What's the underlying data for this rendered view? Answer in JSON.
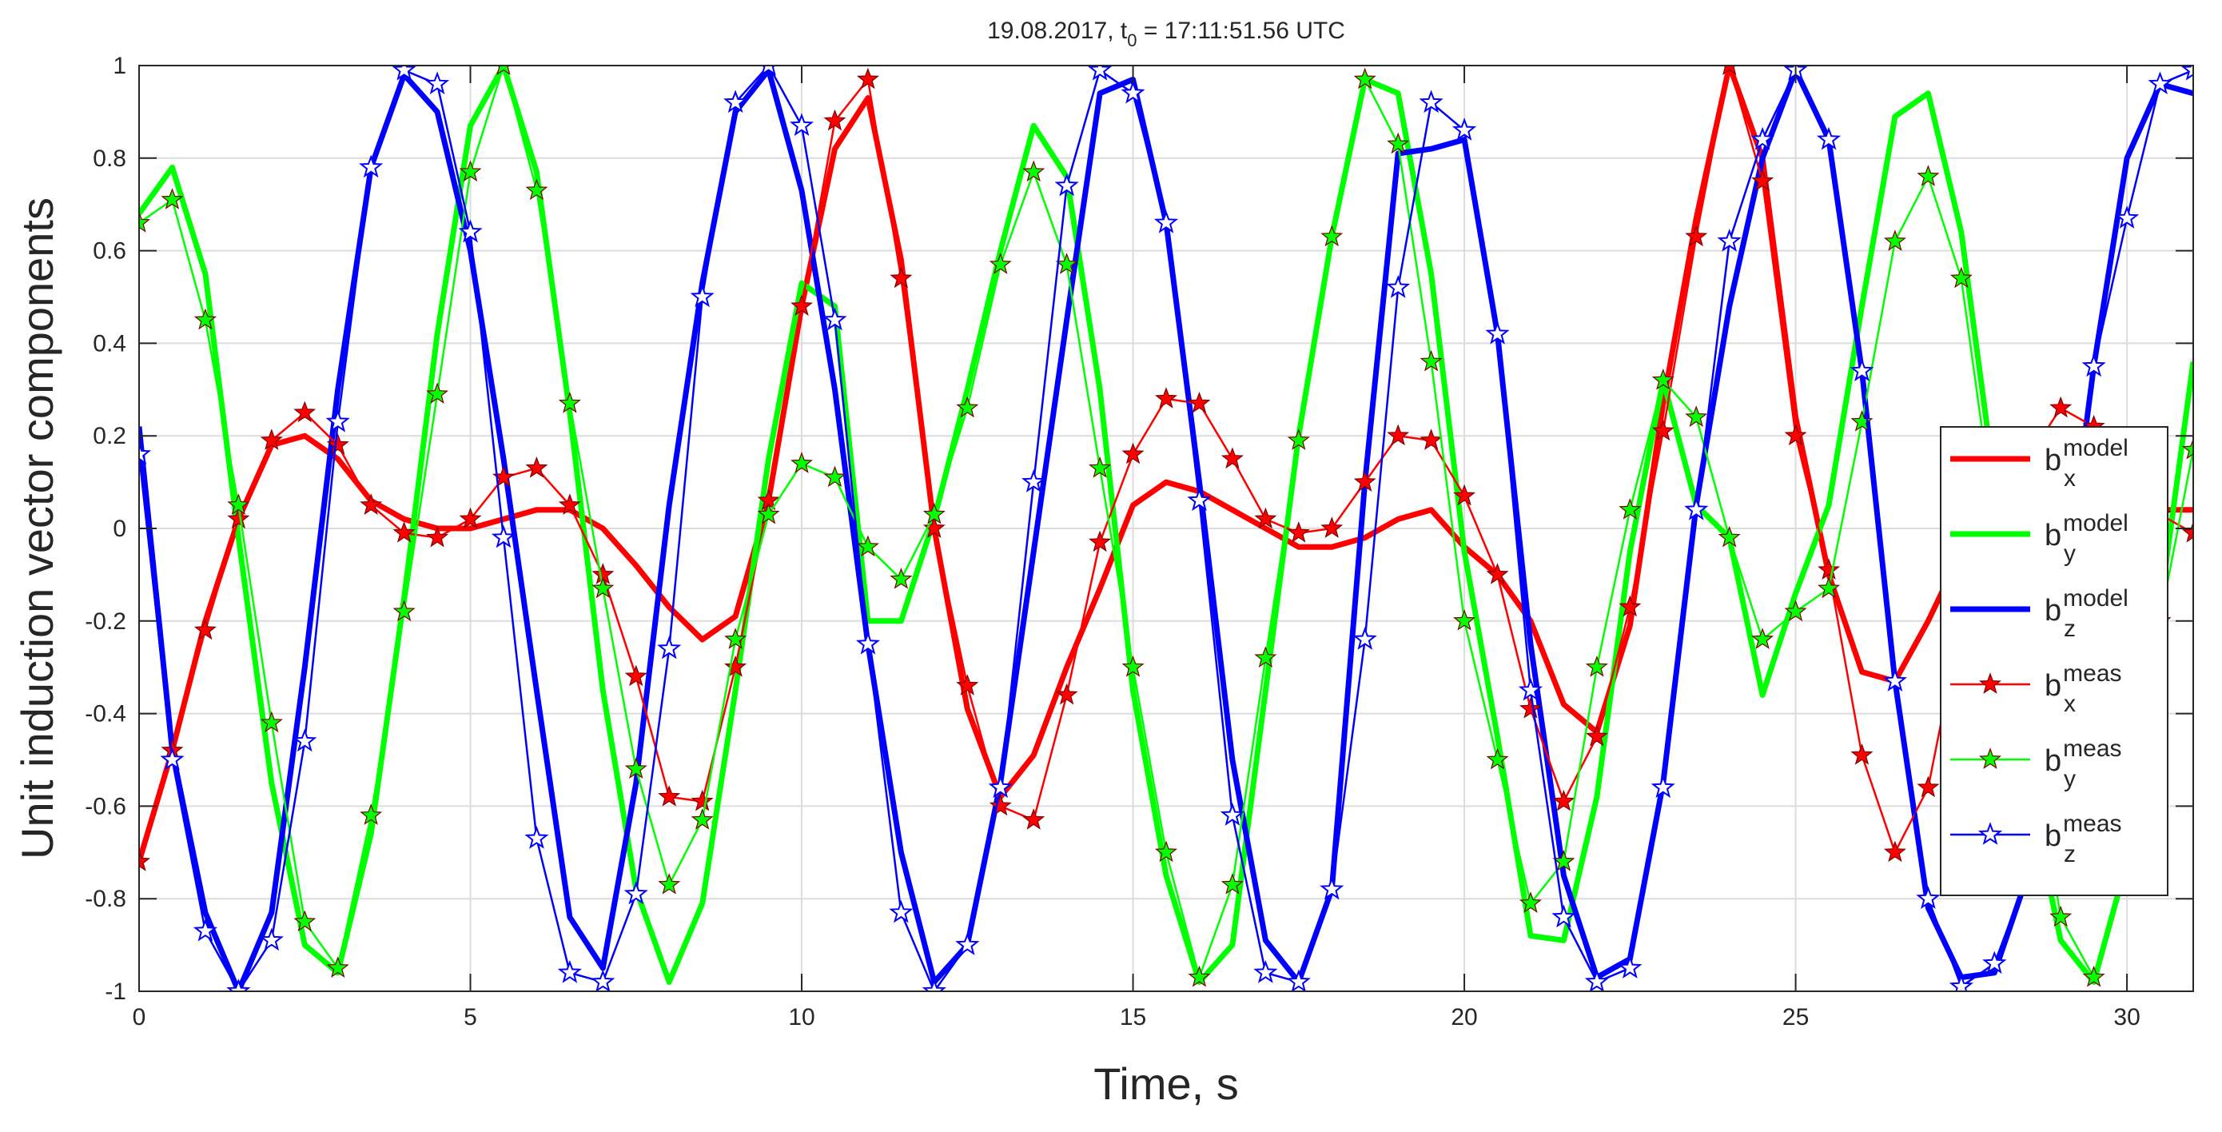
{
  "chart_data": {
    "type": "line",
    "title_main": "19.08.2017, t",
    "title_sub": "0",
    "title_rest": " = 17:11:51.56 UTC",
    "xlabel": "Time, s",
    "ylabel": "Unit induction vector components",
    "xlim": [
      0,
      31
    ],
    "ylim": [
      -1,
      1
    ],
    "xticks": [
      0,
      5,
      10,
      15,
      20,
      25,
      30
    ],
    "xtick_labels": [
      "0",
      "5",
      "10",
      "15",
      "20",
      "25",
      "30"
    ],
    "yticks": [
      -1,
      -0.8,
      -0.6,
      -0.4,
      -0.2,
      0,
      0.2,
      0.4,
      0.6,
      0.8,
      1
    ],
    "ytick_labels": [
      "-1",
      "-0.8",
      "-0.6",
      "-0.4",
      "-0.2",
      "0",
      "0.2",
      "0.4",
      "0.6",
      "0.8",
      "1"
    ],
    "grid": true,
    "legend_position": "right",
    "x": [
      0,
      0.5,
      1,
      1.5,
      2,
      2.5,
      3,
      3.5,
      4,
      4.5,
      5,
      5.5,
      6,
      6.5,
      7,
      7.5,
      8,
      8.5,
      9,
      9.5,
      10,
      10.5,
      11,
      11.5,
      12,
      12.5,
      13,
      13.5,
      14,
      14.5,
      15,
      15.5,
      16,
      16.5,
      17,
      17.5,
      18,
      18.5,
      19,
      19.5,
      20,
      20.5,
      21,
      21.5,
      22,
      22.5,
      23,
      23.5,
      24,
      24.5,
      25,
      25.5,
      26,
      26.5,
      27,
      27.5,
      28,
      28.5,
      29,
      29.5,
      30,
      30.5,
      31
    ],
    "series": [
      {
        "name": "bx model",
        "base": "b",
        "sub": "x",
        "sup": "model",
        "color": "#ff0000",
        "style": "thick",
        "values": [
          -0.72,
          -0.48,
          -0.2,
          0.02,
          0.18,
          0.2,
          0.15,
          0.06,
          0.02,
          0,
          0,
          0.02,
          0.04,
          0.04,
          0,
          -0.08,
          -0.17,
          -0.24,
          -0.19,
          0.06,
          0.48,
          0.82,
          0.93,
          0.58,
          0,
          -0.39,
          -0.58,
          -0.49,
          -0.3,
          -0.13,
          0.05,
          0.1,
          0.08,
          0.04,
          0,
          -0.04,
          -0.04,
          -0.02,
          0.02,
          0.04,
          -0.04,
          -0.1,
          -0.2,
          -0.38,
          -0.44,
          -0.21,
          0.27,
          0.67,
          1.0,
          0.8,
          0.24,
          -0.1,
          -0.31,
          -0.33,
          -0.2,
          -0.05,
          0.02,
          0.05,
          0.05,
          0.04,
          0.02,
          0.04,
          0.04
        ]
      },
      {
        "name": "by model",
        "base": "b",
        "sub": "y",
        "sup": "model",
        "color": "#00ff00",
        "style": "thick",
        "values": [
          0.68,
          0.78,
          0.55,
          -0.02,
          -0.55,
          -0.9,
          -0.96,
          -0.66,
          -0.15,
          0.42,
          0.87,
          1.0,
          0.77,
          0.25,
          -0.35,
          -0.78,
          -0.98,
          -0.81,
          -0.35,
          0.15,
          0.53,
          0.48,
          -0.2,
          -0.2,
          0.02,
          0.3,
          0.6,
          0.87,
          0.76,
          0.3,
          -0.35,
          -0.75,
          -0.98,
          -0.9,
          -0.35,
          0.2,
          0.63,
          0.97,
          0.94,
          0.55,
          -0.05,
          -0.45,
          -0.88,
          -0.89,
          -0.58,
          -0.05,
          0.32,
          0.05,
          -0.02,
          -0.36,
          -0.14,
          0.05,
          0.48,
          0.89,
          0.94,
          0.64,
          0.1,
          -0.55,
          -0.89,
          -0.98,
          -0.72,
          -0.17,
          0.36
        ]
      },
      {
        "name": "bz model",
        "base": "b",
        "sub": "z",
        "sup": "model",
        "color": "#0000ff",
        "style": "thick",
        "values": [
          0.22,
          -0.48,
          -0.83,
          -1.0,
          -0.83,
          -0.3,
          0.3,
          0.78,
          0.98,
          0.9,
          0.6,
          0.15,
          -0.35,
          -0.84,
          -0.95,
          -0.55,
          0.05,
          0.53,
          0.9,
          0.99,
          0.73,
          0.3,
          -0.25,
          -0.7,
          -0.98,
          -0.9,
          -0.55,
          -0.05,
          0.45,
          0.94,
          0.97,
          0.66,
          0.1,
          -0.5,
          -0.89,
          -0.98,
          -0.78,
          0.1,
          0.81,
          0.82,
          0.84,
          0.42,
          -0.25,
          -0.75,
          -0.97,
          -0.93,
          -0.55,
          0.05,
          0.48,
          0.8,
          0.99,
          0.84,
          0.34,
          -0.33,
          -0.82,
          -0.97,
          -0.96,
          -0.75,
          -0.2,
          0.35,
          0.8,
          0.96,
          0.94
        ]
      },
      {
        "name": "bx meas",
        "base": "b",
        "sub": "x",
        "sup": "meas",
        "color": "#ff0000",
        "style": "thin",
        "values": [
          -0.72,
          -0.48,
          -0.22,
          0.02,
          0.19,
          0.25,
          0.18,
          0.05,
          -0.01,
          -0.02,
          0.02,
          0.11,
          0.13,
          0.05,
          -0.1,
          -0.32,
          -0.58,
          -0.59,
          -0.3,
          0.06,
          0.48,
          0.88,
          0.97,
          0.54,
          0,
          -0.34,
          -0.6,
          -0.63,
          -0.36,
          -0.03,
          0.16,
          0.28,
          0.27,
          0.15,
          0.02,
          -0.01,
          0,
          0.1,
          0.2,
          0.19,
          0.07,
          -0.1,
          -0.39,
          -0.59,
          -0.45,
          -0.17,
          0.21,
          0.63,
          1.0,
          0.75,
          0.2,
          -0.09,
          -0.49,
          -0.7,
          -0.56,
          -0.2,
          0.02,
          0.15,
          0.26,
          0.22,
          0.1,
          0.03,
          -0.01
        ]
      },
      {
        "name": "by meas",
        "base": "b",
        "sub": "y",
        "sup": "meas",
        "color": "#00ff00",
        "style": "thin",
        "values": [
          0.66,
          0.71,
          0.45,
          0.05,
          -0.42,
          -0.85,
          -0.95,
          -0.62,
          -0.18,
          0.29,
          0.77,
          1.0,
          0.73,
          0.27,
          -0.13,
          -0.52,
          -0.77,
          -0.63,
          -0.24,
          0.03,
          0.14,
          0.11,
          -0.04,
          -0.11,
          0.03,
          0.26,
          0.57,
          0.77,
          0.57,
          0.13,
          -0.3,
          -0.7,
          -0.97,
          -0.77,
          -0.28,
          0.19,
          0.63,
          0.97,
          0.83,
          0.36,
          -0.2,
          -0.5,
          -0.81,
          -0.72,
          -0.3,
          0.04,
          0.32,
          0.24,
          -0.02,
          -0.24,
          -0.18,
          -0.13,
          0.23,
          0.62,
          0.76,
          0.54,
          0.02,
          -0.4,
          -0.84,
          -0.97,
          -0.74,
          -0.2,
          0.17
        ]
      },
      {
        "name": "bz meas",
        "base": "b",
        "sub": "z",
        "sup": "meas",
        "color": "#0000ff",
        "style": "thin",
        "values": [
          0.16,
          -0.5,
          -0.87,
          -1.0,
          -0.89,
          -0.46,
          0.23,
          0.78,
          0.99,
          0.96,
          0.64,
          -0.02,
          -0.67,
          -0.96,
          -0.98,
          -0.79,
          -0.26,
          0.5,
          0.92,
          1.0,
          0.87,
          0.45,
          -0.25,
          -0.83,
          -1.0,
          -0.9,
          -0.56,
          0.1,
          0.74,
          0.99,
          0.94,
          0.66,
          0.06,
          -0.62,
          -0.96,
          -0.98,
          -0.78,
          -0.24,
          0.52,
          0.92,
          0.86,
          0.42,
          -0.35,
          -0.84,
          -0.98,
          -0.95,
          -0.56,
          0.04,
          0.62,
          0.84,
          0.99,
          0.84,
          0.34,
          -0.33,
          -0.8,
          -0.99,
          -0.94,
          -0.75,
          -0.2,
          0.35,
          0.67,
          0.96,
          0.99
        ]
      }
    ]
  }
}
